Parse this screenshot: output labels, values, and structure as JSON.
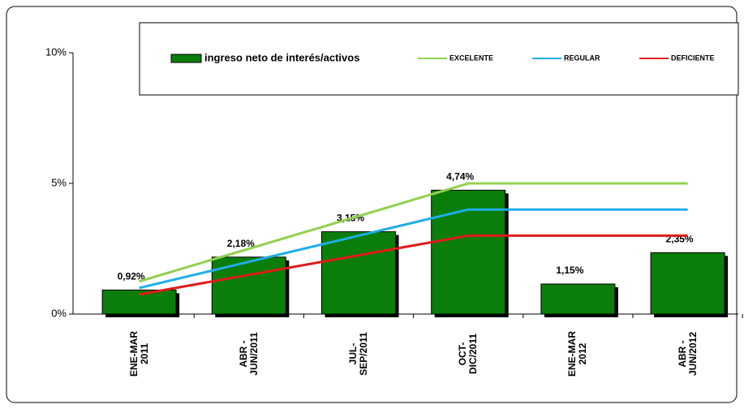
{
  "chart_data": {
    "type": "bar",
    "categories": [
      "ENE-MAR\n2011",
      "ABR -\nJUN/2011",
      "JUL-\nSEP/2011",
      "OCT-\nDIC/2011",
      "ENE-MAR\n2012",
      "ABR -\nJUN/2012"
    ],
    "series": [
      {
        "name": "ingreso neto de interés/activos",
        "type": "bar",
        "color": "#0b7d0b",
        "values": [
          0.92,
          2.18,
          3.15,
          4.74,
          1.15,
          2.35
        ],
        "value_labels": [
          "0,92%",
          "2,18%",
          "3,15%",
          "4,74%",
          "1,15%",
          "2,35%"
        ]
      },
      {
        "name": "EXCELENTE",
        "type": "line",
        "color": "#92d050",
        "values": [
          1.25,
          2.5,
          3.75,
          5,
          5,
          5
        ]
      },
      {
        "name": "REGULAR",
        "type": "line",
        "color": "#1eaee8",
        "values": [
          1,
          2,
          3,
          4,
          4,
          4
        ]
      },
      {
        "name": "DEFICIENTE",
        "type": "line",
        "color": "#e01b1b",
        "values": [
          0.75,
          1.5,
          2.25,
          3,
          3,
          3
        ]
      }
    ],
    "ylim": [
      0,
      10
    ],
    "yticks": [
      {
        "value": 0,
        "label": "0%"
      },
      {
        "value": 5,
        "label": "5%"
      },
      {
        "value": 10,
        "label": "10%"
      }
    ],
    "grid": false,
    "legend": "top"
  }
}
